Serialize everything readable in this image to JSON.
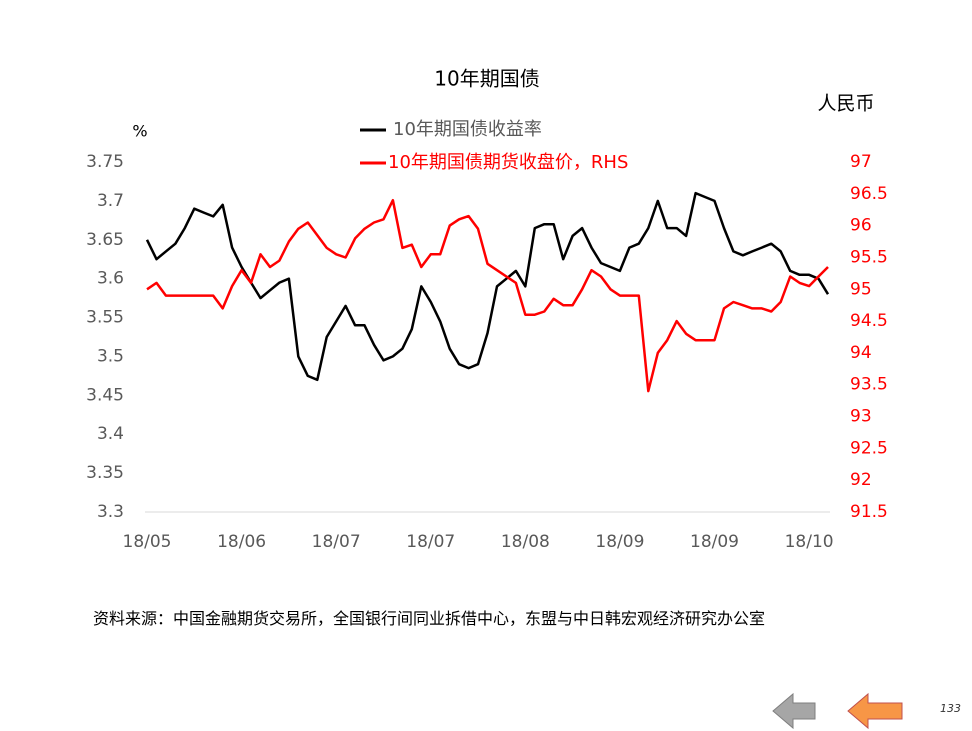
{
  "chart_data": {
    "type": "line",
    "title": "10年期国债",
    "y_label": "%",
    "y2_label": "人民币",
    "categories": [
      "18/05",
      null,
      null,
      null,
      null,
      null,
      null,
      null,
      null,
      null,
      "18/06",
      null,
      null,
      null,
      null,
      null,
      null,
      null,
      null,
      null,
      "18/07",
      null,
      null,
      null,
      null,
      null,
      null,
      null,
      null,
      null,
      "18/07",
      null,
      null,
      null,
      null,
      null,
      null,
      null,
      null,
      null,
      "18/08",
      null,
      null,
      null,
      null,
      null,
      null,
      null,
      null,
      null,
      "18/09",
      null,
      null,
      null,
      null,
      null,
      null,
      null,
      null,
      null,
      "18/09",
      null,
      null,
      null,
      null,
      null,
      null,
      null,
      null,
      null,
      "18/10",
      null,
      null
    ],
    "series": [
      {
        "name": "10年期国债收益率",
        "color": "#000000",
        "axis": "y",
        "values": [
          3.65,
          3.625,
          3.635,
          3.645,
          3.665,
          3.69,
          3.685,
          3.68,
          3.695,
          3.64,
          3.615,
          3.595,
          3.575,
          3.585,
          3.595,
          3.6,
          3.5,
          3.475,
          3.47,
          3.525,
          3.545,
          3.565,
          3.54,
          3.54,
          3.515,
          3.495,
          3.5,
          3.51,
          3.535,
          3.59,
          3.57,
          3.545,
          3.51,
          3.49,
          3.485,
          3.49,
          3.53,
          3.59,
          3.6,
          3.61,
          3.59,
          3.665,
          3.67,
          3.67,
          3.625,
          3.655,
          3.665,
          3.64,
          3.62,
          3.615,
          3.61,
          3.64,
          3.645,
          3.665,
          3.7,
          3.665,
          3.665,
          3.655,
          3.71,
          3.705,
          3.7,
          3.665,
          3.635,
          3.63,
          3.635,
          3.64,
          3.645,
          3.635,
          3.61,
          3.605,
          3.605,
          3.6,
          3.58
        ]
      },
      {
        "name": "10年期国债期货收盘价，RHS",
        "color": "#ff0000",
        "axis": "y2",
        "values": [
          95,
          95.1,
          94.9,
          94.9,
          94.9,
          94.9,
          94.9,
          94.9,
          94.7,
          95.05,
          95.3,
          95.1,
          95.55,
          95.35,
          95.45,
          95.75,
          95.95,
          96.05,
          95.85,
          95.65,
          95.55,
          95.5,
          95.8,
          95.95,
          96.05,
          96.1,
          96.4,
          95.65,
          95.7,
          95.35,
          95.55,
          95.55,
          96,
          96.1,
          96.15,
          95.95,
          95.4,
          95.3,
          95.2,
          95.1,
          94.6,
          94.6,
          94.65,
          94.85,
          94.75,
          94.75,
          95,
          95.3,
          95.2,
          95,
          94.9,
          94.9,
          94.9,
          93.4,
          94,
          94.2,
          94.5,
          94.3,
          94.2,
          94.2,
          94.2,
          94.7,
          94.8,
          94.75,
          94.7,
          94.7,
          94.65,
          94.8,
          95.2,
          95.1,
          95.05,
          95.2,
          95.35
        ]
      }
    ],
    "ylim": [
      3.3,
      3.75
    ],
    "yticks": [
      3.3,
      3.35,
      3.4,
      3.45,
      3.5,
      3.55,
      3.6,
      3.65,
      3.7,
      3.75
    ],
    "y2lim": [
      91.5,
      97
    ],
    "y2ticks": [
      91.5,
      92,
      92.5,
      93,
      93.5,
      94,
      94.5,
      95,
      95.5,
      96,
      96.5,
      97
    ],
    "y2_color": "#ff0000",
    "grid": false,
    "legend": "top"
  },
  "source": "资料来源：中国金融期货交易所，全国银行间同业拆借中心，东盟与中日韩宏观经济研究办公室",
  "page_number": "133"
}
